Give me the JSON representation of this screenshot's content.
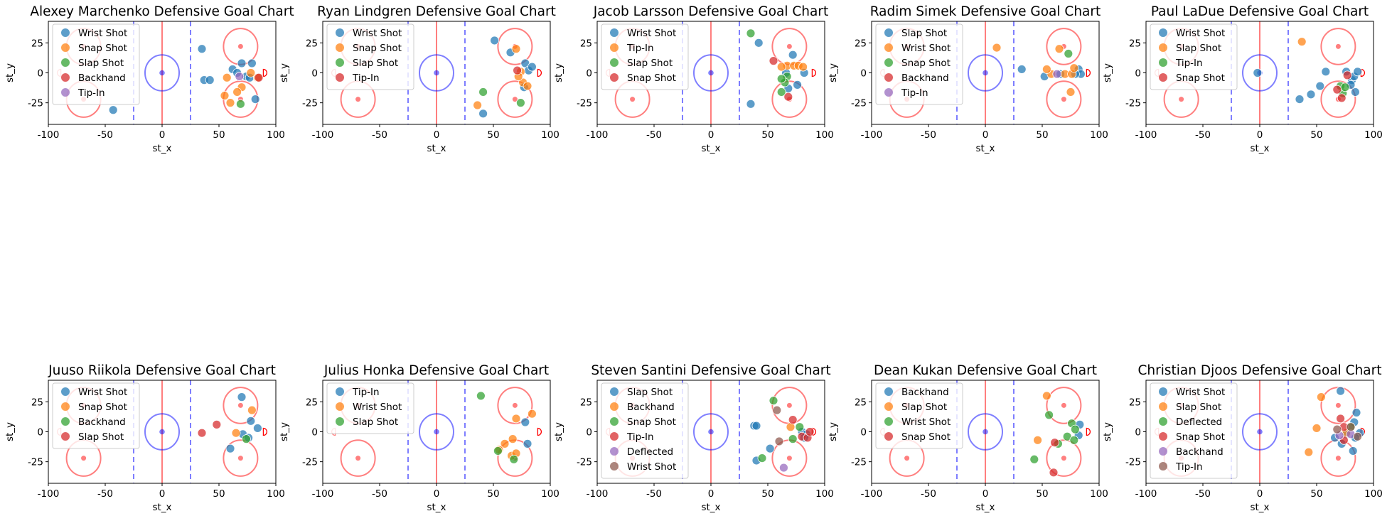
{
  "figure": {
    "xlabel": "st_x",
    "ylabel": "st_y",
    "xlim": [
      -100,
      100
    ],
    "ylim": [
      -43,
      43
    ],
    "xticks": [
      -100,
      -50,
      0,
      50,
      100
    ],
    "yticks": [
      -25,
      0,
      25
    ]
  },
  "palette": {
    "blue": "#1f77b4",
    "orange": "#ff7f0e",
    "green": "#2ca02c",
    "red": "#d62728",
    "purple": "#9467bd",
    "brown": "#8c564b",
    "rink_red": "#ff0000",
    "rink_blue": "#0000ff"
  },
  "chart_data": [
    {
      "type": "scatter",
      "title": "Alexey Marchenko Defensive Goal Chart",
      "series": [
        {
          "name": "Wrist Shot",
          "color": "blue",
          "points": [
            [
              35,
              20
            ],
            [
              37,
              -6
            ],
            [
              42,
              -6
            ],
            [
              -43,
              -31
            ],
            [
              62,
              3
            ],
            [
              70,
              8
            ],
            [
              79,
              8
            ],
            [
              74,
              -3
            ],
            [
              82,
              -22
            ],
            [
              77,
              -4
            ],
            [
              66,
              0
            ]
          ]
        },
        {
          "name": "Snap Shot",
          "color": "orange",
          "points": [
            [
              55,
              -19
            ],
            [
              60,
              -25
            ],
            [
              70,
              -12
            ],
            [
              66,
              -16
            ],
            [
              84,
              -4
            ],
            [
              78,
              0
            ],
            [
              57,
              -4
            ]
          ]
        },
        {
          "name": "Slap Shot",
          "color": "green",
          "points": [
            [
              69,
              -26
            ]
          ]
        },
        {
          "name": "Backhand",
          "color": "red",
          "points": [
            [
              85,
              -4
            ]
          ]
        },
        {
          "name": "Tip-In",
          "color": "purple",
          "points": [
            [
              68,
              -3
            ]
          ]
        }
      ]
    },
    {
      "type": "scatter",
      "title": "Ryan Lindgren Defensive Goal Chart",
      "series": [
        {
          "name": "Wrist Shot",
          "color": "blue",
          "points": [
            [
              51,
              27
            ],
            [
              65,
              17
            ],
            [
              78,
              8
            ],
            [
              81,
              2
            ],
            [
              84,
              5
            ],
            [
              41,
              -34
            ],
            [
              77,
              -12
            ]
          ]
        },
        {
          "name": "Snap Shot",
          "color": "orange",
          "points": [
            [
              36,
              -27
            ],
            [
              70,
              20
            ],
            [
              76,
              -8
            ],
            [
              80,
              -11
            ],
            [
              74,
              1
            ],
            [
              72,
              -3
            ]
          ]
        },
        {
          "name": "Slap Shot",
          "color": "green",
          "points": [
            [
              41,
              -16
            ],
            [
              74,
              -25
            ]
          ]
        },
        {
          "name": "Tip-In",
          "color": "red",
          "points": [
            [
              71,
              2
            ]
          ]
        }
      ]
    },
    {
      "type": "scatter",
      "title": "Jacob Larsson Defensive Goal Chart",
      "series": [
        {
          "name": "Wrist Shot",
          "color": "blue",
          "points": [
            [
              42,
              25
            ],
            [
              35,
              -26
            ],
            [
              72,
              15
            ],
            [
              76,
              -10
            ],
            [
              68,
              -13
            ],
            [
              82,
              0
            ],
            [
              66,
              0
            ]
          ]
        },
        {
          "name": "Tip-In",
          "color": "orange",
          "points": [
            [
              67,
              6
            ],
            [
              73,
              6
            ],
            [
              77,
              6
            ],
            [
              81,
              5
            ],
            [
              62,
              5
            ]
          ]
        },
        {
          "name": "Slap Shot",
          "color": "green",
          "points": [
            [
              35,
              33
            ],
            [
              67,
              -3
            ],
            [
              62,
              -16
            ],
            [
              65,
              -8
            ],
            [
              62,
              -5
            ]
          ]
        },
        {
          "name": "Snap Shot",
          "color": "red",
          "points": [
            [
              55,
              10
            ],
            [
              68,
              -20
            ]
          ]
        }
      ]
    },
    {
      "type": "scatter",
      "title": "Radim Simek Defensive Goal Chart",
      "series": [
        {
          "name": "Slap Shot",
          "color": "blue",
          "points": [
            [
              32,
              3
            ],
            [
              52,
              -3
            ],
            [
              66,
              -1
            ],
            [
              82,
              3
            ],
            [
              84,
              -1
            ],
            [
              79,
              -1
            ]
          ]
        },
        {
          "name": "Wrist Shot",
          "color": "orange",
          "points": [
            [
              10,
              21
            ],
            [
              65,
              20
            ],
            [
              70,
              -1
            ],
            [
              76,
              -1
            ],
            [
              78,
              4
            ],
            [
              75,
              -16
            ],
            [
              58,
              -1
            ],
            [
              54,
              3
            ]
          ]
        },
        {
          "name": "Snap Shot",
          "color": "green",
          "points": [
            [
              73,
              16
            ]
          ]
        },
        {
          "name": "Backhand",
          "color": "red",
          "points": []
        },
        {
          "name": "Tip-In",
          "color": "purple",
          "points": [
            [
              63,
              -1
            ]
          ]
        }
      ]
    },
    {
      "type": "scatter",
      "title": "Paul LaDue Defensive Goal Chart",
      "series": [
        {
          "name": "Wrist Shot",
          "color": "blue",
          "points": [
            [
              35,
              -22
            ],
            [
              45,
              -18
            ],
            [
              53,
              -11
            ],
            [
              58,
              1
            ],
            [
              76,
              1
            ],
            [
              81,
              -6
            ],
            [
              83,
              -3
            ],
            [
              84,
              -16
            ],
            [
              86,
              1
            ],
            [
              80,
              -10
            ],
            [
              -2,
              0
            ]
          ]
        },
        {
          "name": "Slap Shot",
          "color": "orange",
          "points": [
            [
              37,
              26
            ]
          ]
        },
        {
          "name": "Tip-In",
          "color": "green",
          "points": [
            [
              71,
              -11
            ],
            [
              73,
              -17
            ],
            [
              75,
              -12
            ]
          ]
        },
        {
          "name": "Snap Shot",
          "color": "red",
          "points": [
            [
              68,
              -14
            ],
            [
              72,
              -21
            ],
            [
              77,
              -2
            ]
          ]
        }
      ]
    },
    {
      "type": "scatter",
      "title": "Juuso Riikola Defensive Goal Chart",
      "series": [
        {
          "name": "Wrist Shot",
          "color": "blue",
          "points": [
            [
              70,
              29
            ],
            [
              78,
              9
            ],
            [
              84,
              3
            ],
            [
              60,
              -14
            ],
            [
              71,
              -2
            ],
            [
              76,
              -5
            ]
          ]
        },
        {
          "name": "Snap Shot",
          "color": "orange",
          "points": [
            [
              79,
              18
            ],
            [
              65,
              -1
            ]
          ]
        },
        {
          "name": "Backhand",
          "color": "green",
          "points": [
            [
              74,
              -6
            ]
          ]
        },
        {
          "name": "Slap Shot",
          "color": "red",
          "points": [
            [
              35,
              -1
            ],
            [
              48,
              6
            ]
          ]
        }
      ]
    },
    {
      "type": "scatter",
      "title": "Julius Honka Defensive Goal Chart",
      "series": [
        {
          "name": "Tip-In",
          "color": "blue",
          "points": [
            [
              78,
              8
            ],
            [
              80,
              -10
            ]
          ]
        },
        {
          "name": "Wrist Shot",
          "color": "orange",
          "points": [
            [
              84,
              15
            ],
            [
              70,
              11
            ],
            [
              67,
              -6
            ],
            [
              60,
              -10
            ],
            [
              55,
              -15
            ],
            [
              66,
              -20
            ],
            [
              70,
              -18
            ]
          ]
        },
        {
          "name": "Slap Shot",
          "color": "green",
          "points": [
            [
              39,
              30
            ],
            [
              54,
              -16
            ],
            [
              68,
              -23
            ]
          ]
        }
      ]
    },
    {
      "type": "scatter",
      "title": "Steven Santini Defensive Goal Chart",
      "series": [
        {
          "name": "Slap Shot",
          "color": "blue",
          "points": [
            [
              38,
              5
            ],
            [
              40,
              5
            ],
            [
              40,
              -24
            ],
            [
              52,
              -14
            ],
            [
              80,
              0
            ],
            [
              84,
              -2
            ],
            [
              82,
              -5
            ]
          ]
        },
        {
          "name": "Backhand",
          "color": "orange",
          "points": [
            [
              70,
              4
            ]
          ]
        },
        {
          "name": "Snap Shot",
          "color": "green",
          "points": [
            [
              55,
              26
            ],
            [
              45,
              -22
            ],
            [
              72,
              -6
            ],
            [
              78,
              4
            ]
          ]
        },
        {
          "name": "Tip-In",
          "color": "red",
          "points": [
            [
              72,
              10
            ],
            [
              80,
              -4
            ],
            [
              85,
              -5
            ],
            [
              87,
              0
            ]
          ]
        },
        {
          "name": "Deflected",
          "color": "purple",
          "points": [
            [
              64,
              -30
            ]
          ]
        },
        {
          "name": "Wrist Shot",
          "color": "brown",
          "points": [
            [
              58,
              18
            ],
            [
              60,
              -8
            ]
          ]
        }
      ]
    },
    {
      "type": "scatter",
      "title": "Dean Kukan Defensive Goal Chart",
      "series": [
        {
          "name": "Backhand",
          "color": "blue",
          "points": [
            [
              83,
              6
            ],
            [
              82,
              -3
            ]
          ]
        },
        {
          "name": "Slap Shot",
          "color": "orange",
          "points": [
            [
              54,
              30
            ],
            [
              46,
              -7
            ]
          ]
        },
        {
          "name": "Wrist Shot",
          "color": "green",
          "points": [
            [
              56,
              14
            ],
            [
              43,
              -23
            ],
            [
              64,
              -10
            ],
            [
              72,
              -4
            ],
            [
              78,
              -7
            ],
            [
              76,
              7
            ],
            [
              79,
              2
            ]
          ]
        },
        {
          "name": "Snap Shot",
          "color": "red",
          "points": [
            [
              60,
              -34
            ],
            [
              61,
              -9
            ]
          ]
        }
      ]
    },
    {
      "type": "scatter",
      "title": "Christian Djoos Defensive Goal Chart",
      "series": [
        {
          "name": "Wrist Shot",
          "color": "blue",
          "points": [
            [
              71,
              34
            ],
            [
              85,
              16
            ],
            [
              83,
              8
            ],
            [
              82,
              -16
            ],
            [
              72,
              -10
            ],
            [
              66,
              -5
            ],
            [
              76,
              -2
            ],
            [
              88,
              -1
            ],
            [
              84,
              -5
            ]
          ]
        },
        {
          "name": "Slap Shot",
          "color": "orange",
          "points": [
            [
              54,
              29
            ],
            [
              50,
              3
            ],
            [
              43,
              -17
            ],
            [
              76,
              -1
            ]
          ]
        },
        {
          "name": "Deflected",
          "color": "green",
          "points": [
            [
              80,
              4
            ]
          ]
        },
        {
          "name": "Snap Shot",
          "color": "red",
          "points": [
            [
              71,
              11
            ],
            [
              74,
              -7
            ],
            [
              74,
              4
            ]
          ]
        },
        {
          "name": "Backhand",
          "color": "purple",
          "points": [
            [
              80,
              -2
            ],
            [
              70,
              -3
            ]
          ]
        },
        {
          "name": "Tip-In",
          "color": "brown",
          "points": [
            [
              68,
              2
            ],
            [
              80,
              4
            ],
            [
              86,
              -4
            ]
          ]
        }
      ]
    }
  ]
}
